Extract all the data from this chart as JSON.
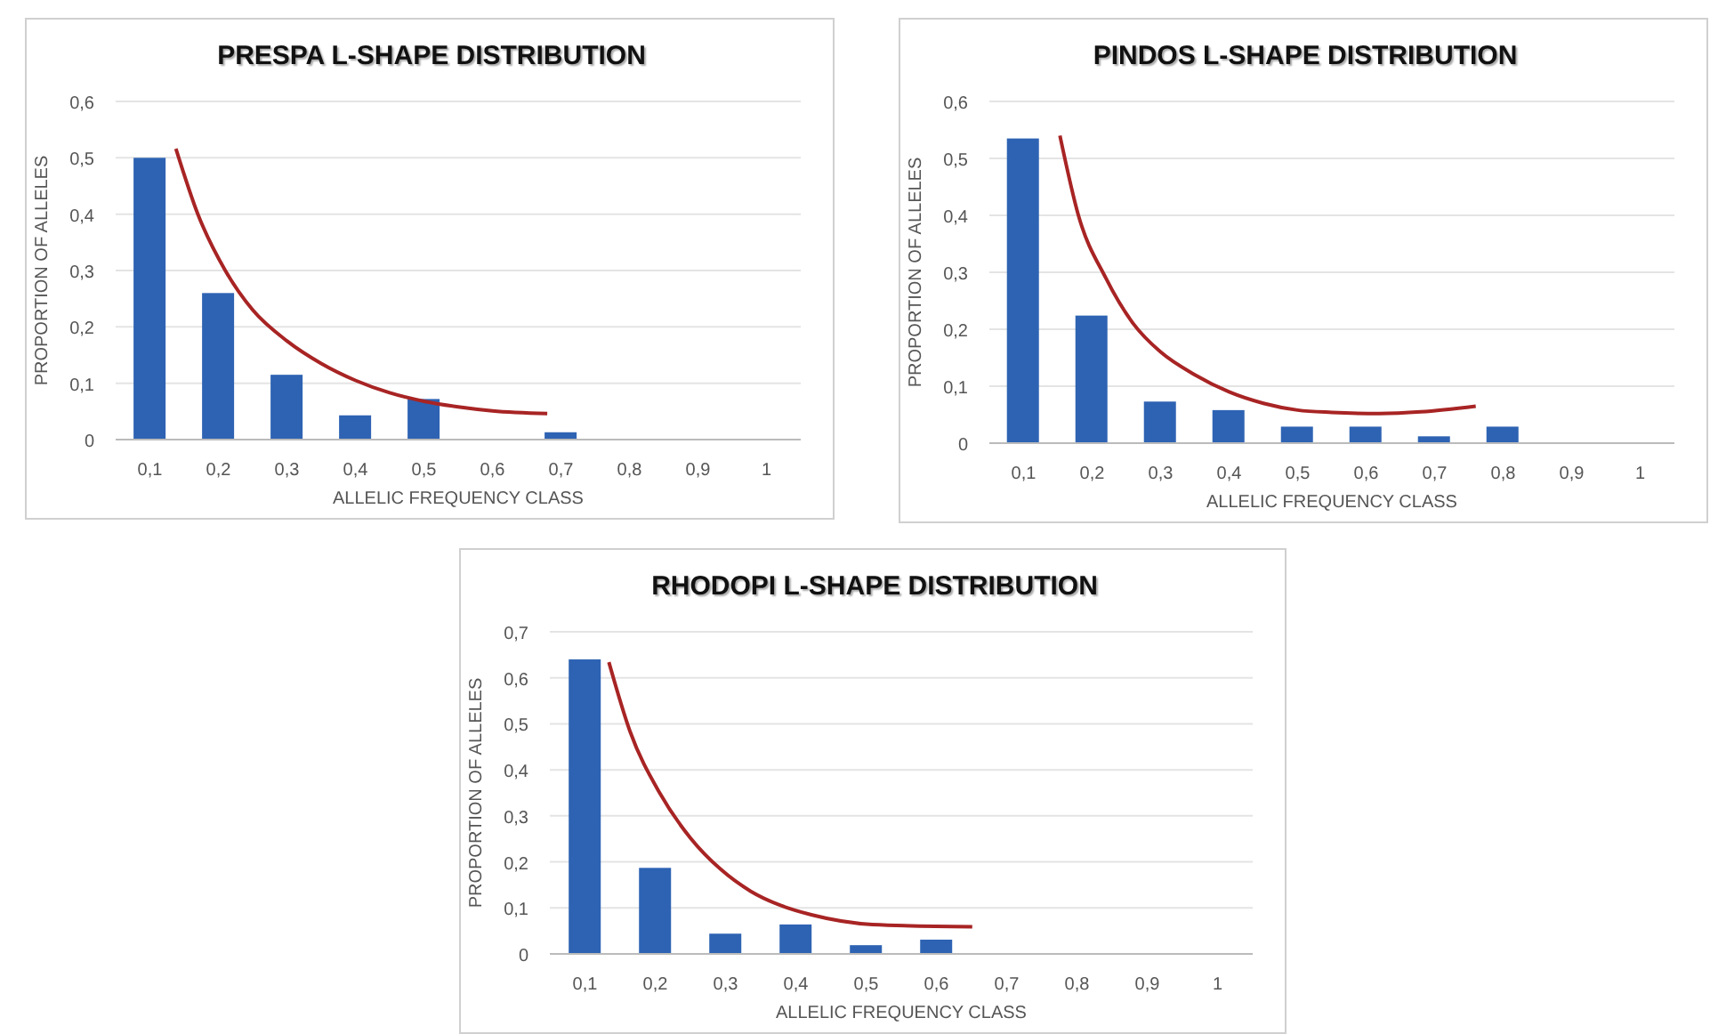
{
  "chart_data": [
    {
      "type": "bar",
      "title": "PRESPA L-SHAPE DISTRIBUTION",
      "xlabel": "ALLELIC FREQUENCY CLASS",
      "ylabel": "PROPORTION OF ALLELES",
      "x": [
        0.1,
        0.2,
        0.3,
        0.4,
        0.5,
        0.6,
        0.7,
        0.8,
        0.9,
        1
      ],
      "xlim": [
        0.05,
        1.05
      ],
      "xticks": [
        {
          "value": 0.1,
          "label": "0,1"
        },
        {
          "value": 0.2,
          "label": "0,2"
        },
        {
          "value": 0.3,
          "label": "0,3"
        },
        {
          "value": 0.4,
          "label": "0,4"
        },
        {
          "value": 0.5,
          "label": "0,5"
        },
        {
          "value": 0.6,
          "label": "0,6"
        },
        {
          "value": 0.7,
          "label": "0,7"
        },
        {
          "value": 0.8,
          "label": "0,8"
        },
        {
          "value": 0.9,
          "label": "0,9"
        },
        {
          "value": 1,
          "label": "1"
        }
      ],
      "ylim": [
        0,
        0.6
      ],
      "yticks": [
        {
          "value": 0,
          "label": "0"
        },
        {
          "value": 0.1,
          "label": "0,1"
        },
        {
          "value": 0.2,
          "label": "0,2"
        },
        {
          "value": 0.3,
          "label": "0,3"
        },
        {
          "value": 0.4,
          "label": "0,4"
        },
        {
          "value": 0.5,
          "label": "0,5"
        },
        {
          "value": 0.6,
          "label": "0,6"
        }
      ],
      "grid": "y",
      "series": [
        {
          "color": "#2e63b3",
          "values": [
            0.5,
            0.26,
            0.115,
            0.043,
            0.072,
            0,
            0.013,
            0,
            0,
            0
          ]
        },
        {
          "type": "line",
          "color": "#a82424",
          "x": [
            0.138,
            0.17,
            0.21,
            0.25,
            0.3,
            0.35,
            0.4,
            0.45,
            0.5,
            0.55,
            0.6,
            0.68
          ],
          "values": [
            0.516,
            0.4,
            0.3,
            0.23,
            0.175,
            0.135,
            0.105,
            0.083,
            0.068,
            0.058,
            0.051,
            0.046
          ]
        }
      ]
    },
    {
      "type": "bar",
      "title": "PINDOS L-SHAPE DISTRIBUTION",
      "xlabel": "ALLELIC FREQUENCY CLASS",
      "ylabel": "PROPORTION OF ALLELES",
      "x": [
        0.1,
        0.2,
        0.3,
        0.4,
        0.5,
        0.6,
        0.7,
        0.8,
        0.9,
        1
      ],
      "xlim": [
        0.05,
        1.05
      ],
      "xticks": [
        {
          "value": 0.1,
          "label": "0,1"
        },
        {
          "value": 0.2,
          "label": "0,2"
        },
        {
          "value": 0.3,
          "label": "0,3"
        },
        {
          "value": 0.4,
          "label": "0,4"
        },
        {
          "value": 0.5,
          "label": "0,5"
        },
        {
          "value": 0.6,
          "label": "0,6"
        },
        {
          "value": 0.7,
          "label": "0,7"
        },
        {
          "value": 0.8,
          "label": "0,8"
        },
        {
          "value": 0.9,
          "label": "0,9"
        },
        {
          "value": 1,
          "label": "1"
        }
      ],
      "ylim": [
        0,
        0.6
      ],
      "yticks": [
        {
          "value": 0,
          "label": "0"
        },
        {
          "value": 0.1,
          "label": "0,1"
        },
        {
          "value": 0.2,
          "label": "0,2"
        },
        {
          "value": 0.3,
          "label": "0,3"
        },
        {
          "value": 0.4,
          "label": "0,4"
        },
        {
          "value": 0.5,
          "label": "0,5"
        },
        {
          "value": 0.6,
          "label": "0,6"
        }
      ],
      "grid": "y",
      "series": [
        {
          "color": "#2e63b3",
          "values": [
            0.535,
            0.224,
            0.073,
            0.058,
            0.029,
            0.029,
            0.012,
            0.029,
            0,
            0
          ]
        },
        {
          "type": "line",
          "color": "#a82424",
          "x": [
            0.153,
            0.18,
            0.22,
            0.26,
            0.3,
            0.35,
            0.4,
            0.45,
            0.5,
            0.55,
            0.62,
            0.68,
            0.76
          ],
          "values": [
            0.54,
            0.4,
            0.29,
            0.21,
            0.16,
            0.12,
            0.09,
            0.07,
            0.058,
            0.054,
            0.052,
            0.055,
            0.065
          ]
        }
      ]
    },
    {
      "type": "bar",
      "title": "RHODOPI L-SHAPE DISTRIBUTION",
      "xlabel": "ALLELIC FREQUENCY CLASS",
      "ylabel": "PROPORTION OF ALLELES",
      "x": [
        0.1,
        0.2,
        0.3,
        0.4,
        0.5,
        0.6,
        0.7,
        0.8,
        0.9,
        1
      ],
      "xlim": [
        0.05,
        1.05
      ],
      "xticks": [
        {
          "value": 0.1,
          "label": "0,1"
        },
        {
          "value": 0.2,
          "label": "0,2"
        },
        {
          "value": 0.3,
          "label": "0,3"
        },
        {
          "value": 0.4,
          "label": "0,4"
        },
        {
          "value": 0.5,
          "label": "0,5"
        },
        {
          "value": 0.6,
          "label": "0,6"
        },
        {
          "value": 0.7,
          "label": "0,7"
        },
        {
          "value": 0.8,
          "label": "0,8"
        },
        {
          "value": 0.9,
          "label": "0,9"
        },
        {
          "value": 1,
          "label": "1"
        }
      ],
      "ylim": [
        0,
        0.7
      ],
      "yticks": [
        {
          "value": 0,
          "label": "0"
        },
        {
          "value": 0.1,
          "label": "0,1"
        },
        {
          "value": 0.2,
          "label": "0,2"
        },
        {
          "value": 0.3,
          "label": "0,3"
        },
        {
          "value": 0.4,
          "label": "0,4"
        },
        {
          "value": 0.5,
          "label": "0,5"
        },
        {
          "value": 0.6,
          "label": "0,6"
        },
        {
          "value": 0.7,
          "label": "0,7"
        }
      ],
      "grid": "y",
      "series": [
        {
          "color": "#2e63b3",
          "values": [
            0.64,
            0.187,
            0.044,
            0.064,
            0.019,
            0.031,
            0,
            0,
            0,
            0
          ]
        },
        {
          "type": "line",
          "color": "#a82424",
          "x": [
            0.134,
            0.164,
            0.207,
            0.25,
            0.293,
            0.336,
            0.379,
            0.422,
            0.509,
            0.651
          ],
          "values": [
            0.634,
            0.484,
            0.348,
            0.252,
            0.184,
            0.136,
            0.105,
            0.085,
            0.064,
            0.059
          ]
        }
      ]
    }
  ]
}
